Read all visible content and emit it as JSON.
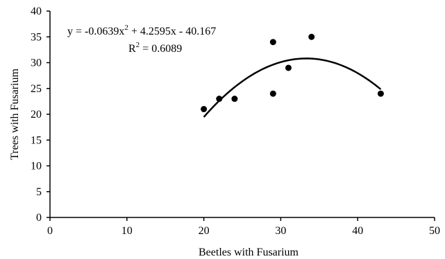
{
  "chart_data": {
    "type": "scatter",
    "xlabel": "Beetles with Fusarium",
    "ylabel": "Trees with Fusarium",
    "xlim": [
      0,
      50
    ],
    "ylim": [
      0,
      40
    ],
    "x_ticks": [
      0,
      10,
      20,
      30,
      40,
      50
    ],
    "y_ticks": [
      0,
      5,
      10,
      15,
      20,
      25,
      30,
      35,
      40
    ],
    "x_tick_labels": [
      "0",
      "10",
      "20",
      "30",
      "40",
      "50"
    ],
    "y_tick_labels": [
      "0",
      "5",
      "10",
      "15",
      "20",
      "25",
      "30",
      "35",
      "40"
    ],
    "grid": false,
    "points": [
      {
        "x": 20,
        "y": 21
      },
      {
        "x": 22,
        "y": 23
      },
      {
        "x": 24,
        "y": 23
      },
      {
        "x": 29,
        "y": 24
      },
      {
        "x": 29,
        "y": 34
      },
      {
        "x": 31,
        "y": 29
      },
      {
        "x": 34,
        "y": 35
      },
      {
        "x": 43,
        "y": 24
      }
    ],
    "trendline": {
      "type": "polynomial",
      "coefficients": [
        -0.0639,
        4.2595,
        -40.167
      ],
      "x_range": [
        20,
        43
      ]
    },
    "annotations": {
      "equation_main": "y = -0.0639x",
      "equation_exp": "2",
      "equation_rest": " + 4.2595x  - 40.167",
      "r2_main": "R",
      "r2_exp": "2",
      "r2_rest": " = 0.6089"
    },
    "colors": {
      "points": "#000000",
      "trendline": "#000000",
      "axes": "#000000"
    }
  }
}
